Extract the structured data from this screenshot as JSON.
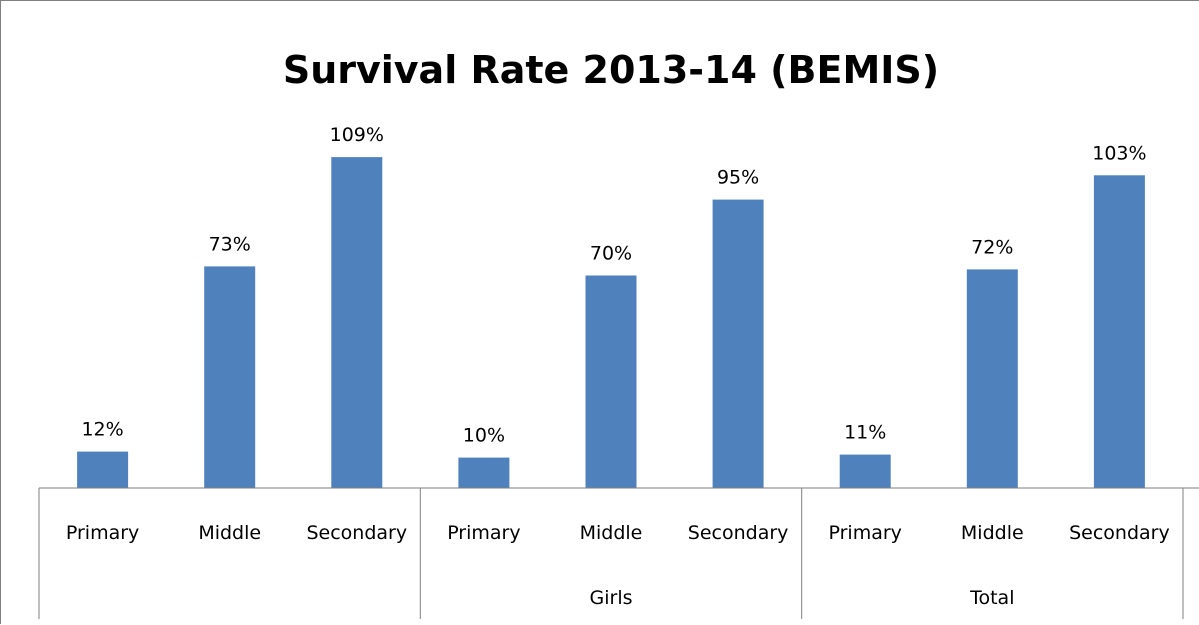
{
  "chart_data": {
    "type": "bar",
    "title": "Survival Rate 2013-14 (BEMIS)",
    "xlabel": "",
    "ylabel": "",
    "ylim": [
      0,
      120
    ],
    "grid": false,
    "legend": "none",
    "groups": [
      {
        "label": "",
        "bars": [
          {
            "category": "Primary",
            "value": 12,
            "label": "12%"
          },
          {
            "category": "Middle",
            "value": 73,
            "label": "73%"
          },
          {
            "category": "Secondary",
            "value": 109,
            "label": "109%"
          }
        ]
      },
      {
        "label": "Girls",
        "bars": [
          {
            "category": "Primary",
            "value": 10,
            "label": "10%"
          },
          {
            "category": "Middle",
            "value": 70,
            "label": "70%"
          },
          {
            "category": "Secondary",
            "value": 95,
            "label": "95%"
          }
        ]
      },
      {
        "label": "Total",
        "bars": [
          {
            "category": "Primary",
            "value": 11,
            "label": "11%"
          },
          {
            "category": "Middle",
            "value": 72,
            "label": "72%"
          },
          {
            "category": "Secondary",
            "value": 103,
            "label": "103%"
          }
        ]
      }
    ],
    "colors": {
      "bar": "#4f81bd",
      "axis": "#7f7f7f",
      "text": "#000000"
    }
  }
}
